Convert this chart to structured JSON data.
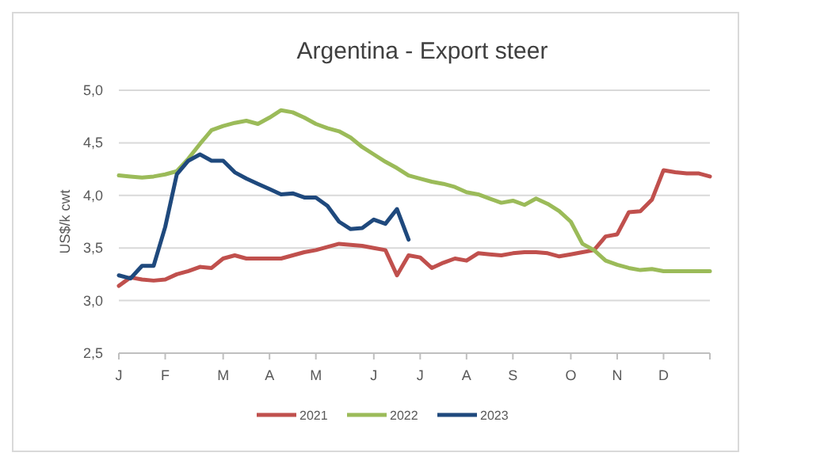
{
  "chart_data": {
    "type": "line",
    "title": "Argentina - Export steer",
    "ylabel": "US$/k cwt",
    "categories": [
      "J",
      null,
      null,
      null,
      "F",
      null,
      null,
      null,
      null,
      "M",
      null,
      null,
      null,
      "A",
      null,
      null,
      null,
      "M",
      null,
      null,
      null,
      null,
      "J",
      null,
      null,
      null,
      "J",
      null,
      null,
      null,
      "A",
      null,
      null,
      null,
      "S",
      null,
      null,
      null,
      null,
      "O",
      null,
      null,
      null,
      "N",
      null,
      null,
      null,
      "D",
      null,
      null,
      null,
      null
    ],
    "ylim": [
      2.5,
      5
    ],
    "yticks": [
      {
        "value": 2.5,
        "label": "2,5"
      },
      {
        "value": 3,
        "label": "3,0"
      },
      {
        "value": 3.5,
        "label": "3,5"
      },
      {
        "value": 4,
        "label": "4,0"
      },
      {
        "value": 4.5,
        "label": "4,5"
      },
      {
        "value": 5,
        "label": "5,0"
      }
    ],
    "grid": "y",
    "legend": "bottom",
    "line_style": "solid",
    "series": [
      {
        "name": "2021",
        "color": "#c0504d",
        "values": [
          3.14,
          3.22,
          3.2,
          3.19,
          3.2,
          3.25,
          3.28,
          3.32,
          3.31,
          3.4,
          3.43,
          3.4,
          3.4,
          3.4,
          3.4,
          3.43,
          3.46,
          3.48,
          3.51,
          3.54,
          3.53,
          3.52,
          3.5,
          3.48,
          3.24,
          3.43,
          3.41,
          3.31,
          3.36,
          3.4,
          3.38,
          3.45,
          3.44,
          3.43,
          3.45,
          3.46,
          3.46,
          3.45,
          3.42,
          3.44,
          3.46,
          3.48,
          3.61,
          3.63,
          3.84,
          3.85,
          3.96,
          4.24,
          4.22,
          4.21,
          4.21,
          4.18
        ]
      },
      {
        "name": "2022",
        "color": "#9bbb59",
        "values": [
          4.19,
          4.18,
          4.17,
          4.18,
          4.2,
          4.23,
          4.35,
          4.49,
          4.62,
          4.66,
          4.69,
          4.71,
          4.68,
          4.74,
          4.81,
          4.79,
          4.74,
          4.68,
          4.64,
          4.61,
          4.55,
          4.46,
          4.39,
          4.32,
          4.26,
          4.19,
          4.16,
          4.13,
          4.11,
          4.08,
          4.03,
          4.01,
          3.97,
          3.93,
          3.95,
          3.91,
          3.97,
          3.92,
          3.85,
          3.75,
          3.54,
          3.48,
          3.38,
          3.34,
          3.31,
          3.29,
          3.3,
          3.28,
          3.28,
          3.28,
          3.28,
          3.28
        ]
      },
      {
        "name": "2023",
        "color": "#1f497d",
        "values": [
          3.24,
          3.21,
          3.33,
          3.33,
          3.7,
          4.2,
          4.33,
          4.39,
          4.33,
          4.33,
          4.22,
          4.16,
          4.11,
          4.06,
          4.01,
          4.02,
          3.98,
          3.98,
          3.9,
          3.75,
          3.68,
          3.69,
          3.77,
          3.73,
          3.87,
          3.58,
          null,
          null,
          null,
          null,
          null,
          null,
          null,
          null,
          null,
          null,
          null,
          null,
          null,
          null,
          null,
          null,
          null,
          null,
          null,
          null,
          null,
          null,
          null,
          null,
          null,
          null
        ]
      }
    ]
  }
}
